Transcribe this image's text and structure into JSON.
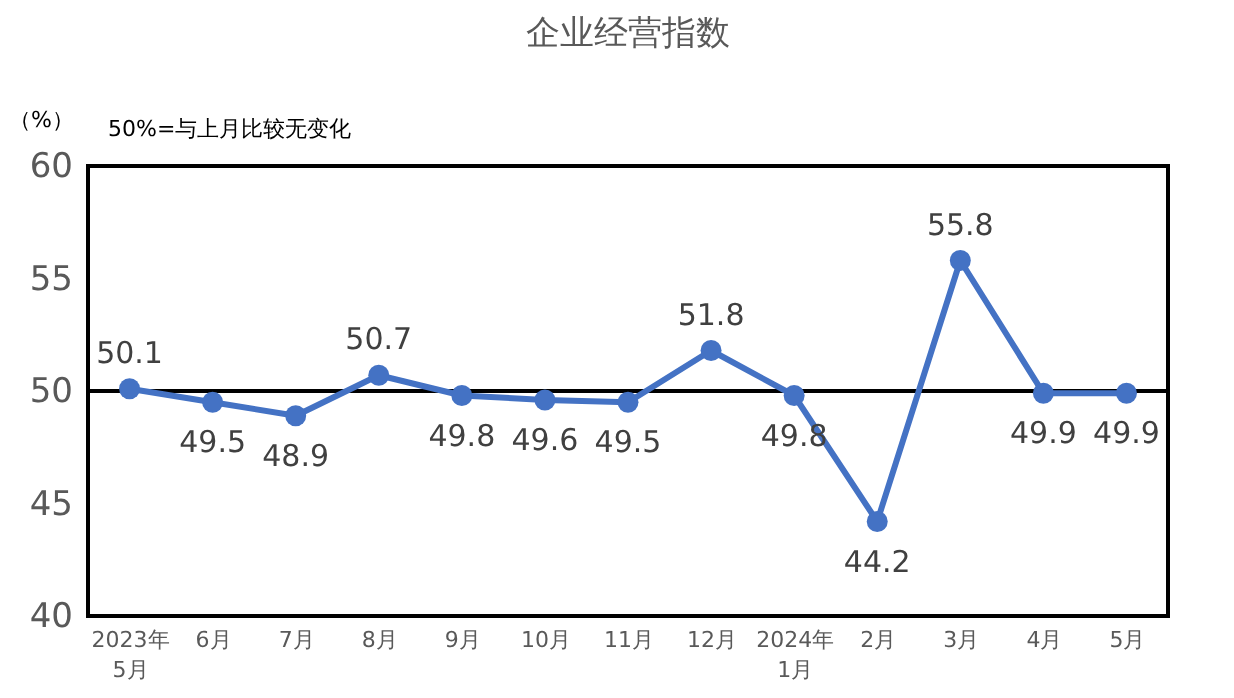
{
  "chart_data": {
    "type": "line",
    "title": "企业经营指数",
    "ylabel": "（%）",
    "annotations": [
      "50%=与上月比较无变化"
    ],
    "categories": [
      "2023年\n5月",
      "6月",
      "7月",
      "8月",
      "9月",
      "10月",
      "11月",
      "12月",
      "2024年\n1月",
      "2月",
      "3月",
      "4月",
      "5月"
    ],
    "series": [
      {
        "color": "#4472c4",
        "values": [
          50.1,
          49.5,
          48.9,
          50.7,
          49.8,
          49.6,
          49.5,
          51.8,
          49.8,
          44.2,
          55.8,
          49.9,
          49.9
        ]
      }
    ],
    "ylim": [
      40,
      60
    ],
    "yticks": [
      40,
      45,
      50,
      55,
      60
    ],
    "ref_lines": [
      {
        "axis": "y",
        "value": 50,
        "color": "#000000"
      }
    ],
    "data_labels": true,
    "marker": "circle",
    "grid": false
  }
}
